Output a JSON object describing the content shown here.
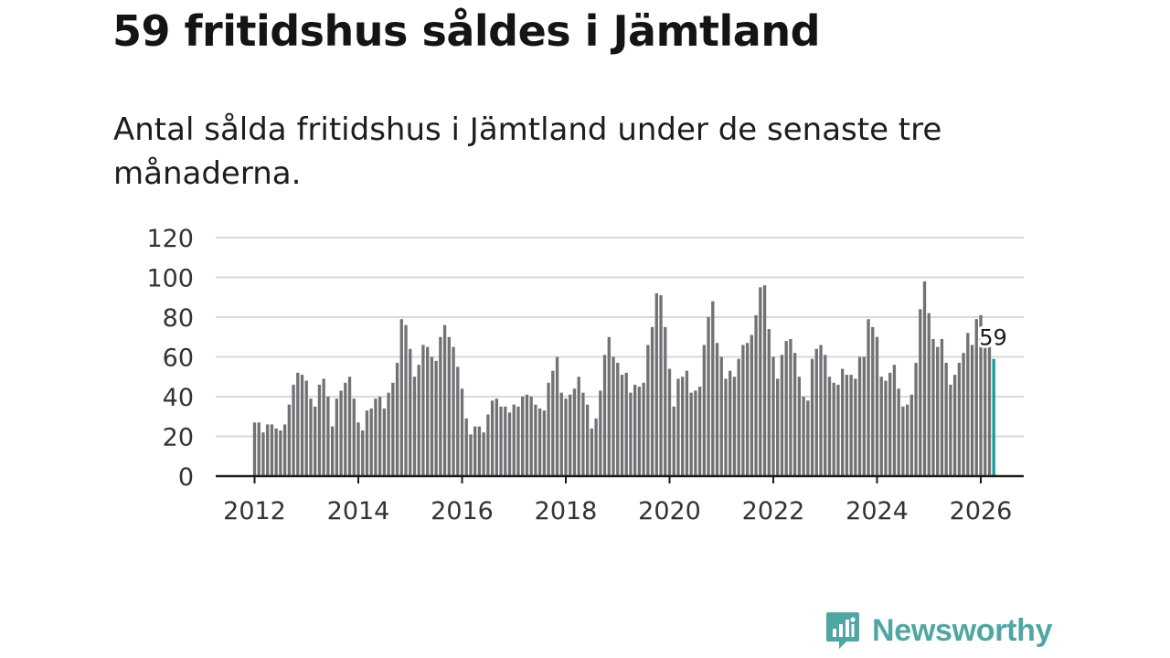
{
  "title": "59 fritidshus såldes i Jämtland",
  "subtitle": "Antal sålda fritidshus i Jämtland under de senaste tre månaderna.",
  "brand": {
    "name": "Newsworthy",
    "color": "#4fa6a3",
    "icon": "newsworthy-logo-icon"
  },
  "colors": {
    "bar": "#727276",
    "highlight": "#139d9b",
    "grid": "#d9d9d9",
    "axis": "#1a1a1a"
  },
  "chart_data": {
    "type": "bar",
    "title": "59 fritidshus såldes i Jämtland",
    "xlabel": "",
    "ylabel": "",
    "ylim": [
      0,
      120
    ],
    "yticks": [
      "0",
      "20",
      "40",
      "60",
      "80",
      "100",
      "120"
    ],
    "xticks": [
      "2012",
      "2014",
      "2016",
      "2018",
      "2020",
      "2022",
      "2024",
      "2026"
    ],
    "grid": true,
    "start": "2012-01",
    "end": "2026-01",
    "highlight_label": "59",
    "values": [
      27,
      27,
      22,
      26,
      26,
      24,
      23,
      26,
      36,
      46,
      52,
      51,
      48,
      39,
      35,
      46,
      49,
      40,
      25,
      39,
      43,
      47,
      50,
      39,
      27,
      23,
      33,
      34,
      39,
      40,
      34,
      42,
      47,
      57,
      79,
      76,
      64,
      50,
      56,
      66,
      65,
      60,
      58,
      70,
      76,
      70,
      65,
      55,
      44,
      29,
      21,
      25,
      25,
      22,
      31,
      38,
      39,
      35,
      35,
      32,
      36,
      35,
      40,
      41,
      40,
      36,
      34,
      33,
      47,
      53,
      60,
      42,
      39,
      41,
      44,
      50,
      42,
      36,
      24,
      29,
      43,
      61,
      70,
      60,
      57,
      51,
      52,
      42,
      46,
      45,
      47,
      66,
      75,
      92,
      91,
      75,
      54,
      35,
      49,
      50,
      53,
      42,
      43,
      45,
      66,
      80,
      88,
      67,
      60,
      49,
      53,
      50,
      59,
      66,
      67,
      71,
      81,
      95,
      96,
      74,
      60,
      49,
      61,
      68,
      69,
      62,
      50,
      40,
      38,
      59,
      64,
      66,
      61,
      50,
      47,
      46,
      54,
      51,
      51,
      49,
      60,
      60,
      79,
      75,
      70,
      50,
      48,
      52,
      56,
      44,
      35,
      36,
      41,
      57,
      84,
      98,
      82,
      69,
      65,
      69,
      57,
      46,
      51,
      57,
      62,
      72,
      66,
      79,
      81,
      65,
      65,
      59
    ]
  }
}
